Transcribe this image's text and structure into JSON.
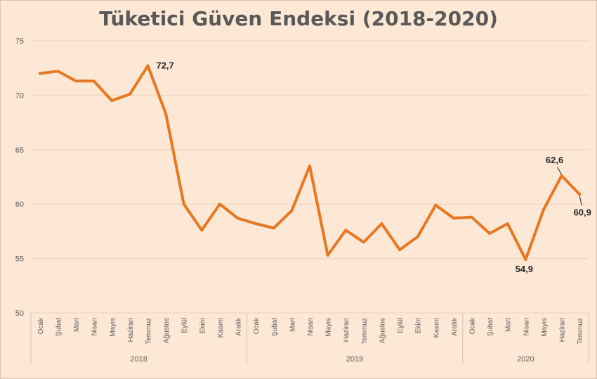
{
  "chart_data": {
    "type": "line",
    "title": "Tüketici Güven Endeksi (2018-2020)",
    "xlabel": "",
    "ylabel": "",
    "ylim": [
      50,
      75
    ],
    "yticks": [
      50,
      55,
      60,
      65,
      70,
      75
    ],
    "grid": true,
    "line_color": "#e87722",
    "years": [
      {
        "label": "2018",
        "months": [
          "Ocak",
          "Şubat",
          "Mart",
          "Nisan",
          "Mayıs",
          "Haziran",
          "Temmuz",
          "Ağustos",
          "Eylül",
          "Ekim",
          "Kasım",
          "Aralık"
        ]
      },
      {
        "label": "2019",
        "months": [
          "Ocak",
          "Şubat",
          "Mart",
          "Nisan",
          "Mayıs",
          "Haziran",
          "Temmuz",
          "Ağustos",
          "Eylül",
          "Ekim",
          "Kasım",
          "Aralık"
        ]
      },
      {
        "label": "2020",
        "months": [
          "Ocak",
          "Şubat",
          "Mart",
          "Nisan",
          "Mayıs",
          "Haziran",
          "Temmuz"
        ]
      }
    ],
    "values": [
      72.0,
      72.2,
      71.3,
      71.3,
      69.5,
      70.1,
      72.7,
      68.3,
      60.0,
      57.6,
      60.0,
      58.7,
      58.2,
      57.8,
      59.4,
      63.5,
      55.3,
      57.6,
      56.5,
      58.2,
      55.8,
      57.0,
      59.9,
      58.7,
      58.8,
      57.3,
      58.2,
      54.9,
      59.5,
      62.6,
      60.9
    ],
    "data_labels": [
      {
        "index": 6,
        "text": "72,7"
      },
      {
        "index": 27,
        "text": "54,9"
      },
      {
        "index": 29,
        "text": "62,6"
      },
      {
        "index": 30,
        "text": "60,9"
      }
    ]
  }
}
